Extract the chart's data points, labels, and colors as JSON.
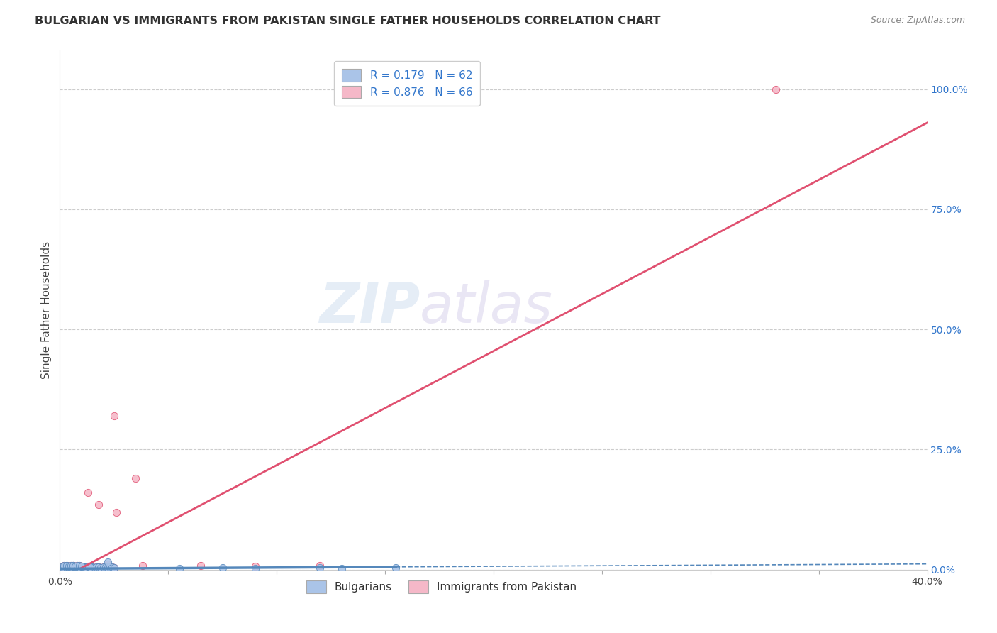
{
  "title": "BULGARIAN VS IMMIGRANTS FROM PAKISTAN SINGLE FATHER HOUSEHOLDS CORRELATION CHART",
  "source": "Source: ZipAtlas.com",
  "ylabel": "Single Father Households",
  "legend_blue_R": "R = 0.179",
  "legend_blue_N": "N = 62",
  "legend_pink_R": "R = 0.876",
  "legend_pink_N": "N = 66",
  "legend_blue_label": "Bulgarians",
  "legend_pink_label": "Immigrants from Pakistan",
  "watermark_zip": "ZIP",
  "watermark_atlas": "atlas",
  "bg_color": "#ffffff",
  "grid_color": "#cccccc",
  "blue_dot_color": "#aac4e8",
  "pink_dot_color": "#f5b8c8",
  "blue_line_color": "#5588bb",
  "pink_line_color": "#e05070",
  "right_axis_color": "#3377cc",
  "title_color": "#333333",
  "blue_scatter_x": [
    0.001,
    0.002,
    0.002,
    0.003,
    0.003,
    0.004,
    0.005,
    0.005,
    0.006,
    0.006,
    0.007,
    0.007,
    0.008,
    0.008,
    0.009,
    0.009,
    0.01,
    0.01,
    0.011,
    0.011,
    0.012,
    0.013,
    0.014,
    0.015,
    0.016,
    0.017,
    0.018,
    0.019,
    0.02,
    0.021,
    0.022,
    0.023,
    0.024,
    0.025,
    0.003,
    0.004,
    0.005,
    0.006,
    0.007,
    0.008,
    0.009,
    0.01,
    0.011,
    0.012,
    0.013,
    0.014,
    0.002,
    0.003,
    0.004,
    0.005,
    0.006,
    0.007,
    0.008,
    0.009,
    0.01,
    0.022,
    0.055,
    0.075,
    0.09,
    0.12,
    0.13,
    0.155
  ],
  "blue_scatter_y": [
    0.005,
    0.003,
    0.006,
    0.004,
    0.007,
    0.005,
    0.004,
    0.007,
    0.005,
    0.008,
    0.004,
    0.006,
    0.005,
    0.007,
    0.004,
    0.006,
    0.005,
    0.007,
    0.004,
    0.006,
    0.005,
    0.004,
    0.006,
    0.005,
    0.004,
    0.006,
    0.005,
    0.004,
    0.006,
    0.005,
    0.004,
    0.006,
    0.005,
    0.004,
    0.008,
    0.006,
    0.005,
    0.007,
    0.005,
    0.006,
    0.005,
    0.007,
    0.006,
    0.005,
    0.007,
    0.006,
    0.009,
    0.008,
    0.007,
    0.009,
    0.008,
    0.007,
    0.009,
    0.008,
    0.007,
    0.016,
    0.003,
    0.004,
    0.003,
    0.004,
    0.003,
    0.004
  ],
  "pink_scatter_x": [
    0.001,
    0.002,
    0.002,
    0.003,
    0.003,
    0.004,
    0.005,
    0.005,
    0.006,
    0.006,
    0.007,
    0.007,
    0.008,
    0.008,
    0.009,
    0.009,
    0.01,
    0.01,
    0.011,
    0.011,
    0.012,
    0.013,
    0.014,
    0.015,
    0.016,
    0.017,
    0.018,
    0.019,
    0.02,
    0.021,
    0.022,
    0.023,
    0.024,
    0.025,
    0.003,
    0.004,
    0.005,
    0.006,
    0.007,
    0.008,
    0.009,
    0.01,
    0.011,
    0.012,
    0.013,
    0.014,
    0.002,
    0.003,
    0.004,
    0.005,
    0.006,
    0.007,
    0.008,
    0.009,
    0.01,
    0.022,
    0.038,
    0.065,
    0.09,
    0.12,
    0.013,
    0.018,
    0.026,
    0.035,
    0.33,
    0.025
  ],
  "pink_scatter_y": [
    0.005,
    0.003,
    0.006,
    0.004,
    0.007,
    0.005,
    0.004,
    0.007,
    0.005,
    0.008,
    0.004,
    0.006,
    0.005,
    0.007,
    0.004,
    0.006,
    0.005,
    0.007,
    0.004,
    0.006,
    0.005,
    0.004,
    0.006,
    0.005,
    0.004,
    0.006,
    0.005,
    0.004,
    0.006,
    0.005,
    0.004,
    0.006,
    0.005,
    0.004,
    0.008,
    0.006,
    0.005,
    0.007,
    0.005,
    0.006,
    0.005,
    0.007,
    0.006,
    0.005,
    0.007,
    0.006,
    0.009,
    0.008,
    0.007,
    0.009,
    0.008,
    0.007,
    0.009,
    0.008,
    0.007,
    0.012,
    0.008,
    0.009,
    0.007,
    0.008,
    0.16,
    0.135,
    0.12,
    0.19,
    1.0,
    0.32
  ],
  "xlim": [
    0.0,
    0.4
  ],
  "ylim": [
    0.0,
    1.08
  ],
  "yticks_right": [
    0.0,
    0.25,
    0.5,
    0.75,
    1.0
  ],
  "ytick_labels_right": [
    "0.0%",
    "25.0%",
    "50.0%",
    "75.0%",
    "100.0%"
  ],
  "xtick_positions": [
    0.0,
    0.05,
    0.1,
    0.15,
    0.2,
    0.25,
    0.3,
    0.35,
    0.4
  ],
  "xtick_labels_show": [
    "0.0%",
    "",
    "",
    "",
    "",
    "",
    "",
    "",
    "40.0%"
  ],
  "pink_line_x0": 0.0,
  "pink_line_y0": -0.02,
  "pink_line_x1": 0.4,
  "pink_line_y1": 0.93,
  "blue_line_x0": 0.0,
  "blue_line_y0": 0.002,
  "blue_line_x1": 0.4,
  "blue_line_y1": 0.012
}
